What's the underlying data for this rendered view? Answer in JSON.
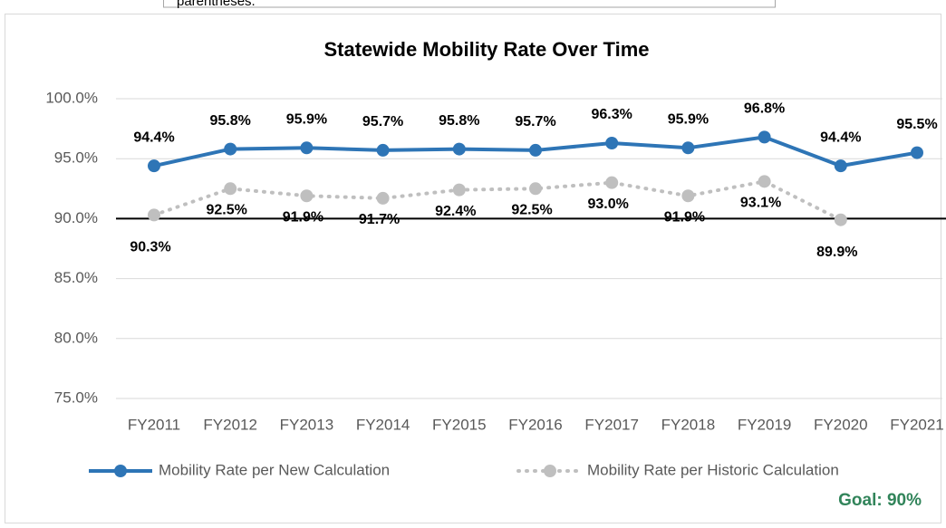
{
  "note": "parentheses.",
  "chart_data": {
    "type": "line",
    "title": "Statewide Mobility Rate Over Time",
    "categories": [
      "FY2011",
      "FY2012",
      "FY2013",
      "FY2014",
      "FY2015",
      "FY2016",
      "FY2017",
      "FY2018",
      "FY2019",
      "FY2020",
      "FY2021"
    ],
    "series": [
      {
        "name": "Mobility Rate per New Calculation",
        "color": "#2e75b6",
        "style": "solid",
        "values": [
          94.4,
          95.8,
          95.9,
          95.7,
          95.8,
          95.7,
          96.3,
          95.9,
          96.8,
          94.4,
          95.5
        ],
        "value_labels": [
          "94.4%",
          "95.8%",
          "95.9%",
          "95.7%",
          "95.8%",
          "95.7%",
          "96.3%",
          "95.9%",
          "96.8%",
          "94.4%",
          "95.5%"
        ]
      },
      {
        "name": "Mobility Rate per Historic Calculation",
        "color": "#bfbfbf",
        "style": "dotted",
        "values": [
          90.3,
          92.5,
          91.9,
          91.7,
          92.4,
          92.5,
          93.0,
          91.9,
          93.1,
          89.9,
          null
        ],
        "value_labels": [
          "90.3%",
          "92.5%",
          "91.9%",
          "91.7%",
          "92.4%",
          "92.5%",
          "93.0%",
          "91.9%",
          "93.1%",
          "89.9%",
          null
        ]
      }
    ],
    "ylim": [
      75,
      100
    ],
    "yticks": [
      {
        "value": 75,
        "label": "75.0%"
      },
      {
        "value": 80,
        "label": "80.0%"
      },
      {
        "value": 85,
        "label": "85.0%"
      },
      {
        "value": 90,
        "label": "90.0%"
      },
      {
        "value": 95,
        "label": "95.0%"
      },
      {
        "value": 100,
        "label": "100.0%"
      }
    ],
    "grid": true,
    "legend": "bottom",
    "goal": {
      "value": 90,
      "label": "Goal: 90%",
      "color": "#31845a"
    }
  }
}
